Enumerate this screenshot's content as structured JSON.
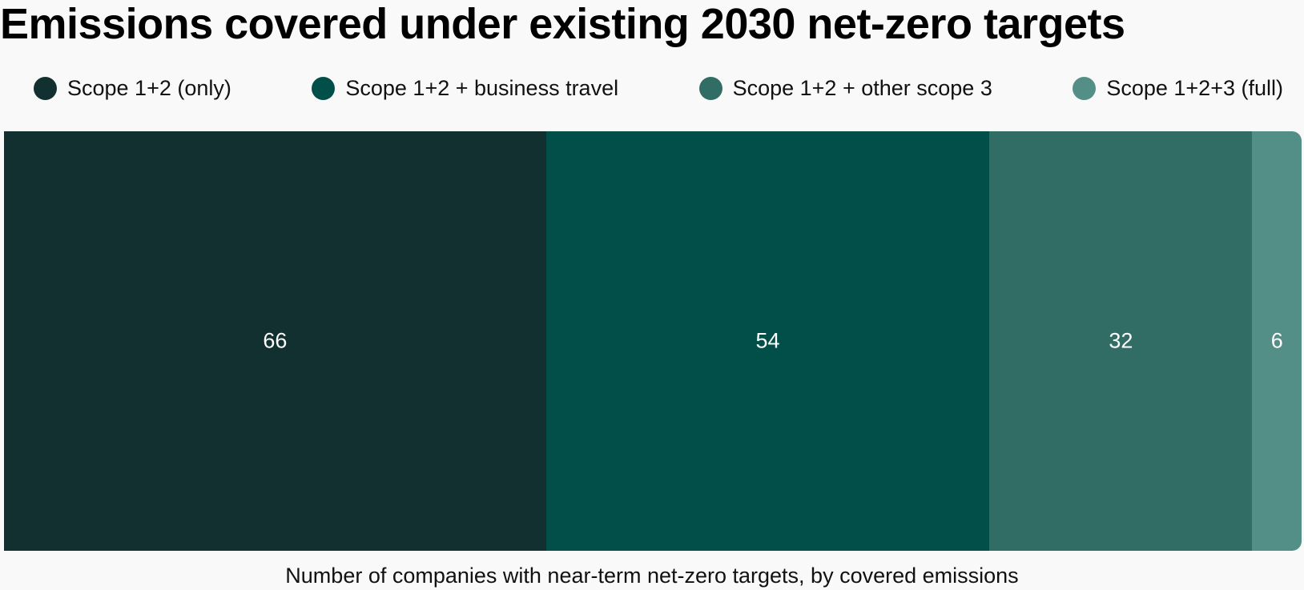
{
  "chart_data": {
    "type": "bar",
    "orientation": "horizontal-stacked",
    "title": "Emissions covered under existing 2030 net-zero targets",
    "caption": "Number of companies with near-term net-zero targets, by covered emissions",
    "xlabel": "",
    "ylabel": "",
    "grid": false,
    "legend_position": "top",
    "series": [
      {
        "name": "Scope 1+2 (only)",
        "value": 66,
        "color": "#133030"
      },
      {
        "name": "Scope 1+2 + business travel",
        "value": 54,
        "color": "#024f4a"
      },
      {
        "name": "Scope 1+2 + other scope 3",
        "value": 32,
        "color": "#316d65"
      },
      {
        "name": "Scope 1+2+3 (full)",
        "value": 6,
        "color": "#538f86"
      }
    ]
  }
}
